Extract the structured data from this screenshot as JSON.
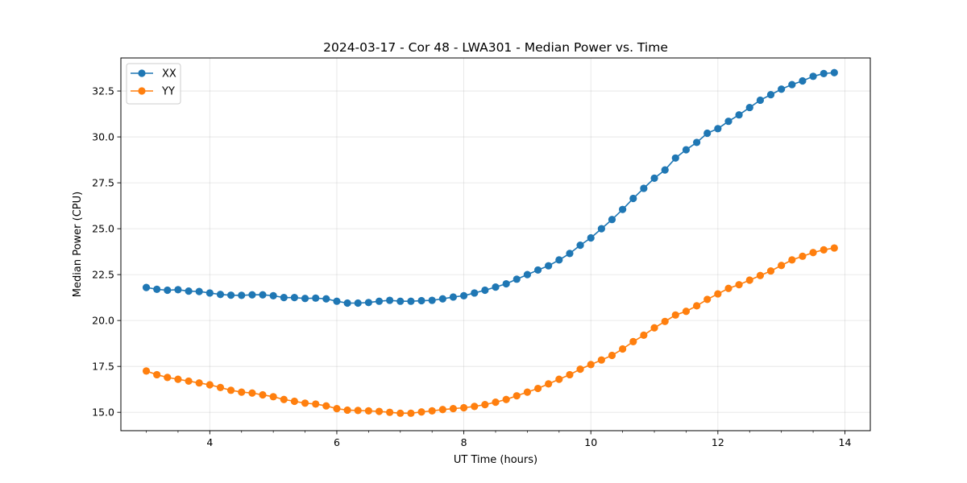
{
  "chart_data": {
    "type": "line",
    "title": "2024-03-17 - Cor 48 - LWA301 - Median Power vs. Time",
    "xlabel": "UT Time (hours)",
    "ylabel": "Median Power (CPU)",
    "xlim": [
      2.6,
      14.4
    ],
    "ylim": [
      14.0,
      34.3
    ],
    "xticks": [
      4,
      6,
      8,
      10,
      12,
      14
    ],
    "xtick_labels": [
      "4",
      "6",
      "8",
      "10",
      "12",
      "14"
    ],
    "yticks": [
      15.0,
      17.5,
      20.0,
      22.5,
      25.0,
      27.5,
      30.0,
      32.5
    ],
    "ytick_labels": [
      "15.0",
      "17.5",
      "20.0",
      "22.5",
      "25.0",
      "27.5",
      "30.0",
      "32.5"
    ],
    "grid": true,
    "legend_position": "upper-left",
    "x": [
      3.0,
      3.167,
      3.333,
      3.5,
      3.667,
      3.833,
      4.0,
      4.167,
      4.333,
      4.5,
      4.667,
      4.833,
      5.0,
      5.167,
      5.333,
      5.5,
      5.667,
      5.833,
      6.0,
      6.167,
      6.333,
      6.5,
      6.667,
      6.833,
      7.0,
      7.167,
      7.333,
      7.5,
      7.667,
      7.833,
      8.0,
      8.167,
      8.333,
      8.5,
      8.667,
      8.833,
      9.0,
      9.167,
      9.333,
      9.5,
      9.667,
      9.833,
      10.0,
      10.167,
      10.333,
      10.5,
      10.667,
      10.833,
      11.0,
      11.167,
      11.333,
      11.5,
      11.667,
      11.833,
      12.0,
      12.167,
      12.333,
      12.5,
      12.667,
      12.833,
      13.0,
      13.167,
      13.333,
      13.5,
      13.667,
      13.833
    ],
    "series": [
      {
        "name": "XX",
        "color": "#1f77b4",
        "values": [
          21.8,
          21.7,
          21.65,
          21.68,
          21.6,
          21.58,
          21.5,
          21.42,
          21.38,
          21.37,
          21.4,
          21.4,
          21.35,
          21.25,
          21.25,
          21.2,
          21.22,
          21.18,
          21.05,
          20.95,
          20.95,
          20.98,
          21.05,
          21.1,
          21.05,
          21.05,
          21.08,
          21.1,
          21.18,
          21.28,
          21.35,
          21.5,
          21.65,
          21.82,
          22.0,
          22.25,
          22.5,
          22.75,
          22.98,
          23.3,
          23.65,
          24.1,
          24.5,
          25.0,
          25.5,
          26.05,
          26.65,
          27.2,
          27.75,
          28.2,
          28.85,
          29.3,
          29.7,
          30.2,
          30.45,
          30.85,
          31.2,
          31.6,
          32.0,
          32.3,
          32.6,
          32.85,
          33.05,
          33.3,
          33.45,
          33.5
        ]
      },
      {
        "name": "YY",
        "color": "#ff7f0e",
        "values": [
          17.25,
          17.05,
          16.9,
          16.8,
          16.7,
          16.6,
          16.5,
          16.35,
          16.2,
          16.1,
          16.05,
          15.95,
          15.85,
          15.7,
          15.6,
          15.5,
          15.45,
          15.35,
          15.2,
          15.12,
          15.1,
          15.08,
          15.05,
          15.0,
          14.95,
          14.95,
          15.02,
          15.08,
          15.15,
          15.2,
          15.25,
          15.32,
          15.42,
          15.55,
          15.7,
          15.9,
          16.1,
          16.3,
          16.55,
          16.8,
          17.05,
          17.35,
          17.6,
          17.85,
          18.1,
          18.45,
          18.85,
          19.2,
          19.6,
          19.95,
          20.3,
          20.5,
          20.8,
          21.15,
          21.45,
          21.75,
          21.95,
          22.2,
          22.45,
          22.7,
          23.0,
          23.3,
          23.5,
          23.7,
          23.85,
          23.95
        ]
      }
    ]
  }
}
